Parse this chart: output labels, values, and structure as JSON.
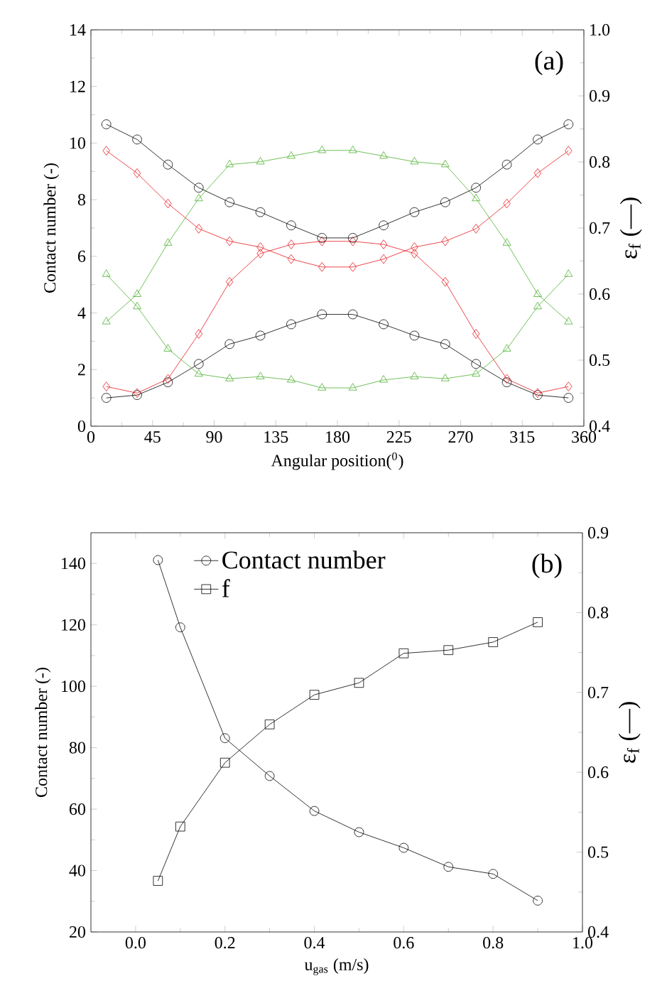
{
  "chart_data": [
    {
      "type": "line",
      "xlabel": "Angular position($^{0}$)",
      "ylabel": "Contact number (-)",
      "y2label": "ε$_{f}$ (—)",
      "annotations": [
        "(a)"
      ],
      "x": [
        11.25,
        33.75,
        56.25,
        78.75,
        101.25,
        123.75,
        146.25,
        168.75,
        191.25,
        213.75,
        236.25,
        258.75,
        281.25,
        303.75,
        326.25,
        348.75
      ],
      "xlim": [
        0,
        360
      ],
      "xticks": [
        0,
        45,
        90,
        135,
        180,
        225,
        270,
        315,
        360
      ],
      "ylim": [
        0,
        14
      ],
      "yticks": [
        0,
        2,
        4,
        6,
        8,
        10,
        12,
        14
      ],
      "y2lim": [
        0.4,
        1.0
      ],
      "y2ticks": [
        0.4,
        0.5,
        0.6,
        0.7,
        0.8,
        0.9,
        {
          "value": 1.0,
          "label": "1.0"
        }
      ],
      "series": [
        {
          "color": "#000000",
          "marker": "circle",
          "values": [
            1.0,
            1.1,
            1.55,
            2.2,
            2.9,
            3.2,
            3.6,
            3.95,
            3.95,
            3.6,
            3.2,
            2.9,
            2.2,
            1.55,
            1.1,
            1.0
          ]
        },
        {
          "color": "#e8191f",
          "marker": "diamond",
          "values": [
            1.4,
            1.17,
            1.67,
            3.26,
            5.1,
            6.1,
            6.42,
            6.53,
            6.53,
            6.42,
            6.1,
            5.1,
            3.26,
            1.67,
            1.17,
            1.4
          ]
        },
        {
          "color": "#4cb030",
          "marker": "triangle",
          "values": [
            3.69,
            4.66,
            6.47,
            8.04,
            9.24,
            9.34,
            9.54,
            9.74,
            9.74,
            9.54,
            9.34,
            9.24,
            8.04,
            6.47,
            4.66,
            3.69
          ]
        },
        {
          "color": "#000000",
          "marker": "circle",
          "axis": "y2",
          "values": [
            0.857,
            0.834,
            0.796,
            0.761,
            0.739,
            0.724,
            0.704,
            0.685,
            0.685,
            0.704,
            0.724,
            0.739,
            0.761,
            0.796,
            0.834,
            0.857
          ]
        },
        {
          "color": "#e8191f",
          "marker": "diamond",
          "axis": "y2",
          "values": [
            0.817,
            0.783,
            0.737,
            0.699,
            0.68,
            0.671,
            0.653,
            0.641,
            0.641,
            0.653,
            0.671,
            0.68,
            0.699,
            0.737,
            0.783,
            0.817
          ]
        },
        {
          "color": "#4cb030",
          "marker": "triangle",
          "axis": "y2",
          "values": [
            0.63,
            0.581,
            0.517,
            0.479,
            0.472,
            0.475,
            0.47,
            0.458,
            0.458,
            0.47,
            0.475,
            0.472,
            0.479,
            0.517,
            0.581,
            0.63
          ]
        }
      ]
    },
    {
      "type": "line",
      "xlabel": "u$_{gas}$ (m/s)",
      "ylabel": "Contact number (-)",
      "y2label": "ε$_{f}$ (—)",
      "annotations": [
        "(b)"
      ],
      "legend": "top left",
      "x": [
        0.05,
        0.1,
        0.2,
        0.3,
        0.4,
        0.5,
        0.6,
        0.7,
        0.8,
        0.9
      ],
      "xlim": [
        -0.1,
        1.0
      ],
      "xticks": [
        {
          "value": 0,
          "label": "0.0"
        },
        0.2,
        0.4,
        0.6,
        0.8,
        {
          "value": 1.0,
          "label": "1.0"
        }
      ],
      "ylim": [
        20,
        150
      ],
      "yticks": [
        20,
        40,
        60,
        80,
        100,
        120,
        140
      ],
      "y2lim": [
        0.4,
        0.9
      ],
      "y2ticks": [
        0.4,
        0.5,
        0.6,
        0.7,
        0.8,
        0.9
      ],
      "series": [
        {
          "name": "Contact number",
          "color": "#000000",
          "marker": "circle",
          "values": [
            141.1,
            119.2,
            83.1,
            70.8,
            59.4,
            52.5,
            47.4,
            41.2,
            38.9,
            30.2
          ]
        },
        {
          "name": "f",
          "color": "#000000",
          "marker": "square",
          "axis": "y2",
          "values": [
            0.464,
            0.532,
            0.612,
            0.66,
            0.697,
            0.712,
            0.749,
            0.753,
            0.763,
            0.788
          ]
        }
      ]
    }
  ]
}
